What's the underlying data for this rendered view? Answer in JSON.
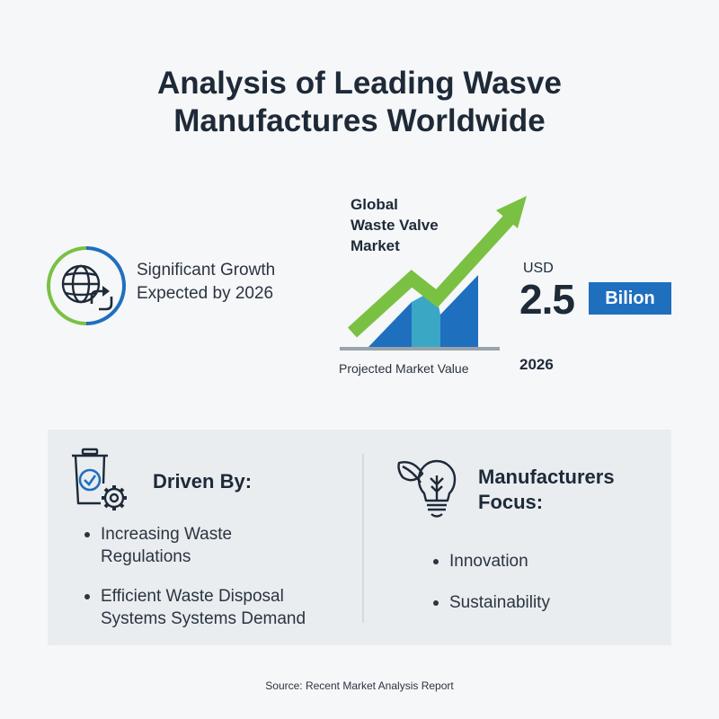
{
  "title": {
    "line1": "Analysis of Leading Wasve",
    "line2": "Manufactures Worldwide"
  },
  "growth": {
    "icon": "globe-recycle-icon",
    "line1": "Significant Growth",
    "line2": "Expected by 2026"
  },
  "market": {
    "chart_title_line1": "Global",
    "chart_title_line2": "Waste Valve",
    "chart_title_line3": "Market",
    "caption": "Projected Market Value",
    "currency": "USD",
    "value": "2.5",
    "unit": "Bilion",
    "year": "2026",
    "icon": "rising-arrow-bar-chart-icon"
  },
  "drivers": {
    "icon": "recycle-bin-gear-icon",
    "heading": "Driven By:",
    "items": [
      {
        "line1": "Increasing Waste",
        "line2": "Regulations"
      },
      {
        "line1": "Efficient Waste Disposal",
        "line2": "Systems Systems Demand"
      }
    ]
  },
  "focus": {
    "icon": "leaf-lightbulb-icon",
    "heading_line1": "Manufacturers",
    "heading_line2": "Focus:",
    "items": [
      "Innovation",
      "Sustainability"
    ]
  },
  "source": "Source: Recent Market Analysis Report",
  "colors": {
    "text": "#1e2a38",
    "green": "#7ac143",
    "blue": "#1f6fbf",
    "teal": "#3aa7c5",
    "panel": "#e9edf0"
  }
}
